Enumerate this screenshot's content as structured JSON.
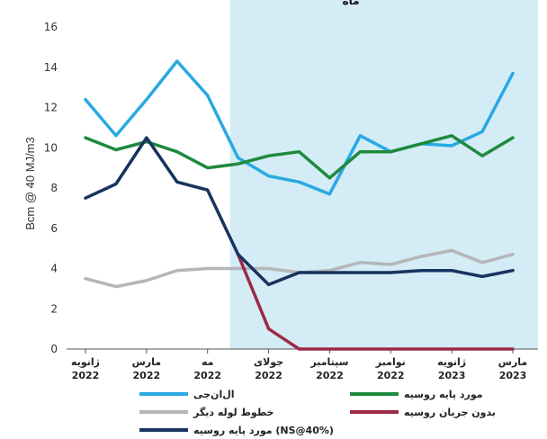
{
  "chart_data": {
    "type": "line",
    "title": "ماه",
    "ylabel": "Bcm @ 40 MJ/m3",
    "ylim": [
      0,
      16
    ],
    "yticks": [
      0,
      2,
      4,
      6,
      8,
      10,
      12,
      14,
      16
    ],
    "x_tick_labels": [
      [
        "ژانویه",
        "2022"
      ],
      [
        "مارس",
        "2022"
      ],
      [
        "مه",
        "2022"
      ],
      [
        "جولای",
        "2022"
      ],
      [
        "سپتامبر",
        "2022"
      ],
      [
        "نوامبر",
        "2022"
      ],
      [
        "ژانویه",
        "2023"
      ],
      [
        "مارس",
        "2023"
      ]
    ],
    "x": [
      "ژانویه 2022",
      "فوریه 2022",
      "مارس 2022",
      "آوریل 2022",
      "مه 2022",
      "ژوئن 2022",
      "جولای 2022",
      "اوت 2022",
      "سپتامبر 2022",
      "اکتبر 2022",
      "نوامبر 2022",
      "دسامبر 2022",
      "ژانویه 2023",
      "فوریه 2023",
      "مارس 2023"
    ],
    "shaded_region": {
      "from": "ژوئن 2022",
      "to": "مارس 2023",
      "color": "#d3ecf6"
    },
    "series": [
      {
        "name": "ال‌ان‌جی",
        "color": "#29a9e1",
        "values": [
          12.4,
          10.6,
          12.4,
          14.3,
          12.6,
          9.5,
          8.6,
          8.3,
          7.7,
          10.6,
          9.8,
          10.2,
          10.1,
          10.8,
          13.7
        ]
      },
      {
        "name": "مورد پایه روسیه",
        "color": "#1e8a3c",
        "values": [
          10.5,
          9.9,
          10.3,
          9.8,
          9.0,
          9.2,
          9.6,
          9.8,
          8.5,
          9.8,
          9.8,
          10.2,
          10.6,
          9.6,
          10.5
        ]
      },
      {
        "name": "خطوط لوله دیگر",
        "color": "#b4b6b8",
        "values": [
          3.5,
          3.1,
          3.4,
          3.9,
          4.0,
          4.0,
          4.0,
          3.8,
          3.9,
          4.3,
          4.2,
          4.6,
          4.9,
          4.3,
          4.7
        ]
      },
      {
        "name": "بدون جریان روسیه",
        "color": "#9b2a48",
        "values": [
          null,
          null,
          null,
          null,
          null,
          4.7,
          1.0,
          0,
          0,
          0,
          0,
          0,
          0,
          0,
          0
        ]
      },
      {
        "name": "مورد پایه روسیه (NS@40%)",
        "color": "#17335f",
        "values": [
          7.5,
          8.2,
          10.5,
          8.3,
          7.9,
          4.7,
          3.2,
          3.8,
          3.8,
          3.8,
          3.8,
          3.9,
          3.9,
          3.6,
          3.9
        ]
      }
    ],
    "legend": {
      "placement": "bottom",
      "entries": [
        {
          "label": "ال‌ان‌جی",
          "color": "#29a9e1"
        },
        {
          "label": "مورد پایه روسیه",
          "color": "#1e8a3c"
        },
        {
          "label": "خطوط لوله دیگر",
          "color": "#b4b6b8"
        },
        {
          "label": "بدون جریان روسیه",
          "color": "#9b2a48"
        },
        {
          "label": "مورد پایه روسیه (NS@40%)",
          "color": "#17335f"
        }
      ]
    },
    "grid": false
  }
}
